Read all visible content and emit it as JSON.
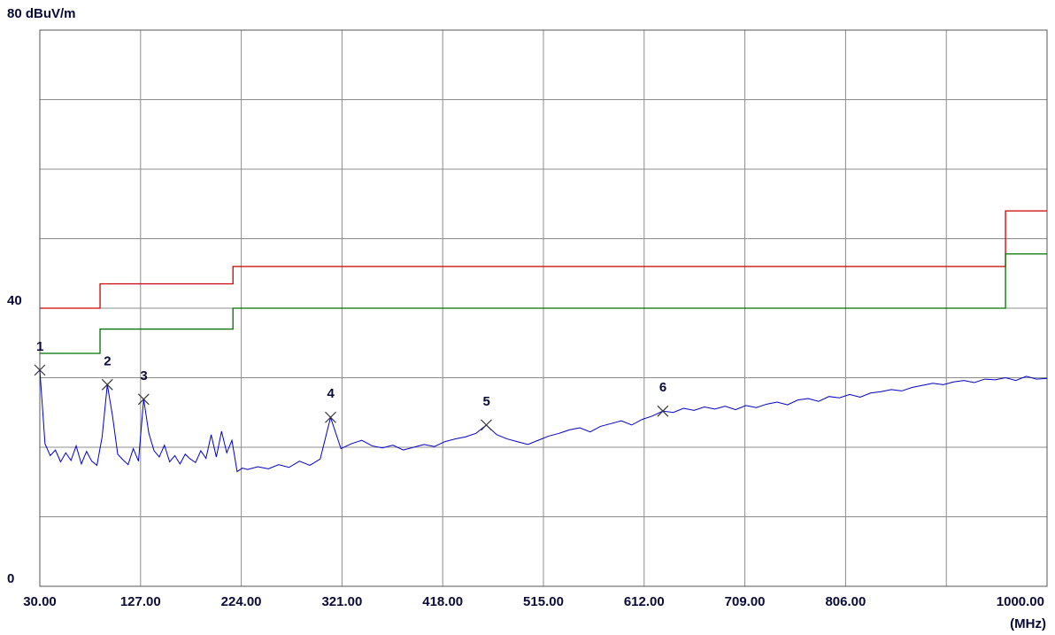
{
  "chart_data": {
    "type": "line",
    "y_axis_label": "80 dBuV/m",
    "x_axis_label": "(MHz)",
    "xlim": [
      30,
      1000
    ],
    "ylim": [
      0,
      80
    ],
    "xticks": [
      {
        "value": 30,
        "label": "30.00"
      },
      {
        "value": 127,
        "label": "127.00"
      },
      {
        "value": 224,
        "label": "224.00"
      },
      {
        "value": 321,
        "label": "321.00"
      },
      {
        "value": 418,
        "label": "418.00"
      },
      {
        "value": 515,
        "label": "515.00"
      },
      {
        "value": 612,
        "label": "612.00"
      },
      {
        "value": 709,
        "label": "709.00"
      },
      {
        "value": 806,
        "label": "806.00"
      },
      {
        "value": 903,
        "label": null
      },
      {
        "value": 1000,
        "label": "1000.00"
      }
    ],
    "yticks": [
      0,
      {
        "value": 10,
        "label": null
      },
      {
        "value": 20,
        "label": null
      },
      {
        "value": 30,
        "label": null
      },
      40,
      {
        "value": 50,
        "label": null
      },
      {
        "value": 60,
        "label": null
      },
      {
        "value": 70,
        "label": null
      },
      {
        "value": 80,
        "label": null
      }
    ],
    "grid": true,
    "limits": [
      {
        "color": "#cc0000",
        "x": [
          30,
          88,
          88,
          216,
          216,
          960,
          960,
          1000
        ],
        "values": [
          40,
          40,
          43.5,
          43.5,
          46,
          46,
          54,
          54
        ]
      },
      {
        "color": "#007000",
        "x": [
          30,
          88,
          88,
          216,
          216,
          960,
          960,
          1000
        ],
        "values": [
          33.5,
          33.5,
          37,
          37,
          40,
          40,
          47.8,
          47.8
        ]
      }
    ],
    "series": [
      {
        "color": "#0000cc",
        "x": [
          30,
          35,
          40,
          45,
          50,
          55,
          60,
          65,
          70,
          75,
          80,
          85,
          90,
          95,
          100,
          105,
          110,
          115,
          120,
          125,
          130,
          135,
          140,
          145,
          150,
          155,
          160,
          165,
          170,
          175,
          180,
          185,
          190,
          195,
          200,
          205,
          210,
          215,
          220,
          225,
          230,
          240,
          250,
          260,
          270,
          280,
          290,
          300,
          310,
          320,
          330,
          340,
          350,
          360,
          370,
          380,
          390,
          400,
          410,
          420,
          430,
          440,
          450,
          460,
          470,
          480,
          490,
          500,
          510,
          520,
          530,
          540,
          550,
          560,
          570,
          580,
          590,
          600,
          610,
          620,
          630,
          640,
          650,
          660,
          670,
          680,
          690,
          700,
          710,
          720,
          730,
          740,
          750,
          760,
          770,
          780,
          790,
          800,
          810,
          820,
          830,
          840,
          850,
          860,
          870,
          880,
          890,
          900,
          910,
          920,
          930,
          940,
          950,
          960,
          970,
          980,
          990,
          1000
        ],
        "values": [
          31.1,
          20.5,
          18.8,
          19.6,
          17.9,
          19.2,
          18.1,
          20.2,
          17.6,
          19.4,
          18.0,
          17.4,
          21.5,
          29.0,
          24.5,
          19.0,
          18.2,
          17.5,
          19.8,
          18.0,
          26.9,
          22.0,
          19.5,
          18.6,
          20.3,
          17.9,
          18.8,
          17.6,
          19.0,
          18.3,
          17.8,
          19.5,
          18.4,
          21.8,
          18.6,
          22.3,
          19.2,
          21.0,
          16.5,
          17.0,
          16.8,
          17.2,
          16.9,
          17.5,
          17.1,
          18.0,
          17.4,
          18.3,
          24.3,
          19.8,
          20.5,
          21.0,
          20.2,
          19.9,
          20.3,
          19.6,
          20.0,
          20.4,
          20.1,
          20.8,
          21.2,
          21.5,
          22.0,
          23.2,
          21.8,
          21.2,
          20.8,
          20.4,
          21.0,
          21.6,
          22.0,
          22.5,
          22.8,
          22.2,
          23.0,
          23.4,
          23.8,
          23.2,
          24.0,
          24.5,
          25.2,
          25.0,
          25.6,
          25.3,
          25.8,
          25.5,
          25.9,
          25.4,
          26.0,
          25.7,
          26.2,
          26.5,
          26.1,
          26.8,
          27.0,
          26.6,
          27.3,
          27.1,
          27.6,
          27.2,
          27.8,
          28.0,
          28.3,
          28.1,
          28.6,
          28.9,
          29.2,
          29.0,
          29.4,
          29.6,
          29.3,
          29.8,
          29.7,
          30.0,
          29.6,
          30.2,
          29.8,
          29.9
        ]
      }
    ],
    "markers": [
      {
        "label": "1",
        "x": 30,
        "y": 31.1
      },
      {
        "label": "2",
        "x": 95,
        "y": 29.0
      },
      {
        "label": "3",
        "x": 130,
        "y": 26.9
      },
      {
        "label": "4",
        "x": 310,
        "y": 24.3
      },
      {
        "label": "5",
        "x": 460,
        "y": 23.2
      },
      {
        "label": "6",
        "x": 630,
        "y": 25.2
      }
    ]
  }
}
